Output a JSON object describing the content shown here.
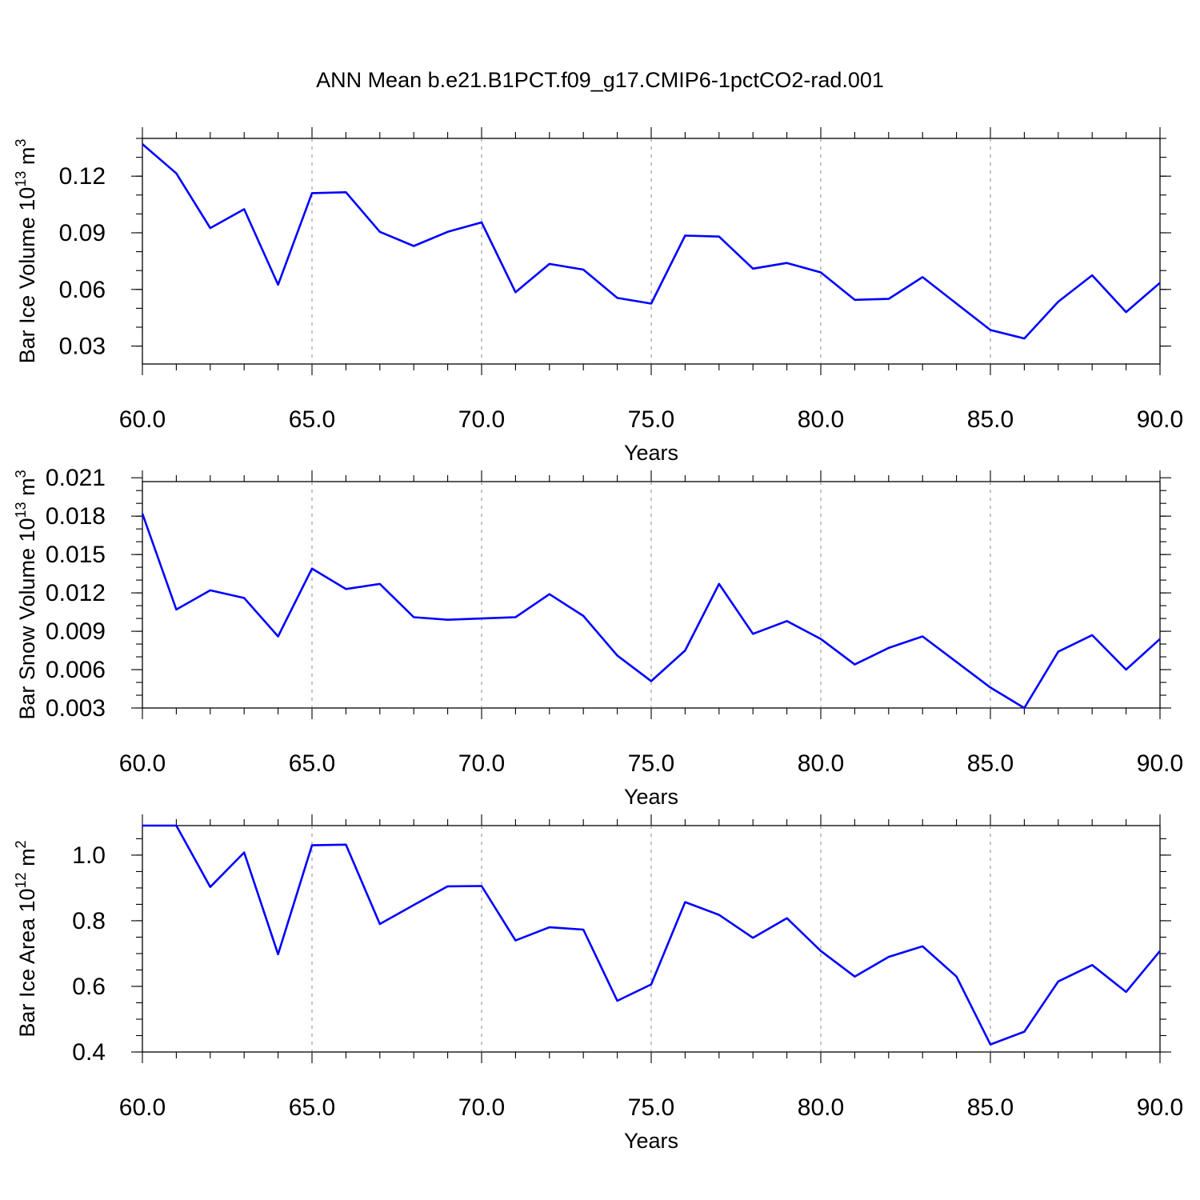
{
  "figure": {
    "title": "ANN Mean b.e21.B1PCT.f09_g17.CMIP6-1pctCO2-rad.001"
  },
  "colors": {
    "line": "#0000ff",
    "axis": "#000000",
    "grid": "#888888"
  },
  "chart_data": [
    {
      "type": "line",
      "title": "ANN Mean b.e21.B1PCT.f09_g17.CMIP6-1pctCO2-rad.001",
      "xlabel": "Years",
      "ylabel_main": "Bar Ice Volume 10",
      "ylabel_exp": "13",
      "ylabel_unit": "m",
      "ylabel_unit_exp": "3",
      "xlim": [
        60,
        90
      ],
      "ylim": [
        0.0205,
        0.14
      ],
      "xticks": [
        60,
        65,
        70,
        75,
        80,
        85,
        90
      ],
      "xtick_labels": [
        "60.0",
        "65.0",
        "70.0",
        "75.0",
        "80.0",
        "85.0",
        "90.0"
      ],
      "yticks": [
        0.03,
        0.06,
        0.09,
        0.12
      ],
      "ytick_labels": [
        "0.03",
        "0.06",
        "0.09",
        "0.12"
      ],
      "ytick_minor_step": 0.01,
      "grid": "dashed vertical at major x ticks",
      "x": [
        60,
        61,
        62,
        63,
        64,
        65,
        66,
        67,
        68,
        69,
        70,
        71,
        72,
        73,
        74,
        75,
        76,
        77,
        78,
        79,
        80,
        81,
        82,
        83,
        84,
        85,
        86,
        87,
        88,
        89,
        90
      ],
      "values": [
        0.137,
        0.1215,
        0.0925,
        0.1025,
        0.0625,
        0.111,
        0.1115,
        0.0905,
        0.083,
        0.0905,
        0.0955,
        0.0585,
        0.0735,
        0.0705,
        0.0555,
        0.0525,
        0.0885,
        0.088,
        0.071,
        0.074,
        0.069,
        0.0545,
        0.055,
        0.0665,
        0.0525,
        0.0385,
        0.034,
        0.0535,
        0.0675,
        0.048,
        0.0635
      ]
    },
    {
      "type": "line",
      "xlabel": "Years",
      "ylabel_main": "Bar Snow Volume 10",
      "ylabel_exp": "13",
      "ylabel_unit": "m",
      "ylabel_unit_exp": "3",
      "xlim": [
        60,
        90
      ],
      "ylim": [
        0.003,
        0.0207
      ],
      "xticks": [
        60,
        65,
        70,
        75,
        80,
        85,
        90
      ],
      "xtick_labels": [
        "60.0",
        "65.0",
        "70.0",
        "75.0",
        "80.0",
        "85.0",
        "90.0"
      ],
      "yticks": [
        0.003,
        0.006,
        0.009,
        0.012,
        0.015,
        0.018,
        0.021
      ],
      "ytick_labels": [
        "0.003",
        "0.006",
        "0.009",
        "0.012",
        "0.015",
        "0.018",
        "0.021"
      ],
      "ytick_minor_step": 0.001,
      "grid": "dashed vertical at major x ticks",
      "x": [
        60,
        61,
        62,
        63,
        64,
        65,
        66,
        67,
        68,
        69,
        70,
        71,
        72,
        73,
        74,
        75,
        76,
        77,
        78,
        79,
        80,
        81,
        82,
        83,
        84,
        85,
        86,
        87,
        88,
        89,
        90
      ],
      "values": [
        0.0182,
        0.0107,
        0.0122,
        0.0116,
        0.0086,
        0.0139,
        0.0123,
        0.0127,
        0.0101,
        0.0099,
        0.01,
        0.0101,
        0.0119,
        0.0102,
        0.0071,
        0.0051,
        0.0075,
        0.0127,
        0.0088,
        0.0098,
        0.0084,
        0.0064,
        0.0077,
        0.0086,
        0.0066,
        0.0046,
        0.003,
        0.0074,
        0.0087,
        0.006,
        0.0084
      ]
    },
    {
      "type": "line",
      "xlabel": "Years",
      "ylabel_main": "Bar Ice Area 10",
      "ylabel_exp": "12",
      "ylabel_unit": "m",
      "ylabel_unit_exp": "2",
      "xlim": [
        60,
        90
      ],
      "ylim": [
        0.4,
        1.09
      ],
      "xticks": [
        60,
        65,
        70,
        75,
        80,
        85,
        90
      ],
      "xtick_labels": [
        "60.0",
        "65.0",
        "70.0",
        "75.0",
        "80.0",
        "85.0",
        "90.0"
      ],
      "yticks": [
        0.4,
        0.6,
        0.8,
        1.0
      ],
      "ytick_labels": [
        "0.4",
        "0.6",
        "0.8",
        "1.0"
      ],
      "ytick_minor_step": 0.05,
      "grid": "dashed vertical at major x ticks",
      "x": [
        60,
        61,
        62,
        63,
        64,
        65,
        66,
        67,
        68,
        69,
        70,
        71,
        72,
        73,
        74,
        75,
        76,
        77,
        78,
        79,
        80,
        81,
        82,
        83,
        84,
        85,
        86,
        87,
        88,
        89,
        90
      ],
      "values": [
        1.09,
        1.09,
        0.903,
        1.008,
        0.698,
        1.03,
        1.032,
        0.79,
        0.848,
        0.905,
        0.906,
        0.74,
        0.78,
        0.773,
        0.556,
        0.606,
        0.857,
        0.818,
        0.748,
        0.808,
        0.708,
        0.63,
        0.69,
        0.722,
        0.63,
        0.423,
        0.462,
        0.615,
        0.665,
        0.583,
        0.708
      ]
    }
  ]
}
